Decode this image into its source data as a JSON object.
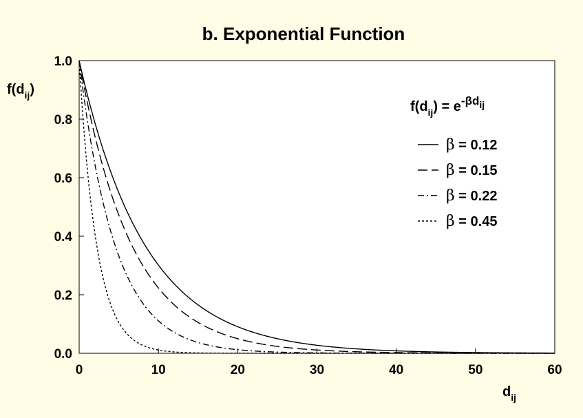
{
  "chart_data": {
    "type": "line",
    "title": "b. Exponential Function",
    "formula": {
      "prefix": "f(d",
      "sub": "ij",
      "mid": ") = e",
      "sup_symbol": "-β",
      "sup_var": "d",
      "sup_sub": "ij"
    },
    "ylabel": {
      "main": "f(d",
      "sub": "ij",
      "close": ")"
    },
    "xlabel": {
      "main": "d",
      "sub": "ij"
    },
    "xlim": [
      0,
      60
    ],
    "ylim": [
      0,
      1
    ],
    "xticks": [
      "0",
      "10",
      "20",
      "30",
      "40",
      "50",
      "60"
    ],
    "yticks": [
      "0.0",
      "0.2",
      "0.4",
      "0.6",
      "0.8",
      "1.0"
    ],
    "grid": false,
    "legend_position": "right",
    "series": [
      {
        "name": "β = 0.12",
        "beta_symbol": "β",
        "beta_value": "= 0.12",
        "style": "solid"
      },
      {
        "name": "β = 0.15",
        "beta_symbol": "β",
        "beta_value": "= 0.15",
        "style": "long-dash"
      },
      {
        "name": "β = 0.22",
        "beta_symbol": "β",
        "beta_value": "= 0.22",
        "style": "dash-dot"
      },
      {
        "name": "β = 0.45",
        "beta_symbol": "β",
        "beta_value": "= 0.45",
        "style": "dotted"
      }
    ],
    "line_color": "#000000",
    "plot_background": "#ffffff",
    "page_background": "#fffde6"
  }
}
